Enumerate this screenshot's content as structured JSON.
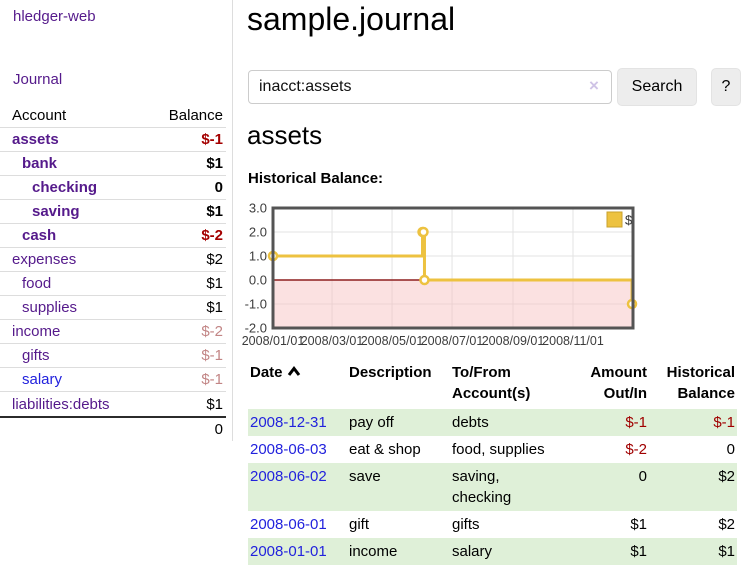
{
  "app": {
    "brand": "hledger-web",
    "nav_journal": "Journal"
  },
  "colors": {
    "link_purple": "#551a8b",
    "link_blue": "#2222dd",
    "negative_strong": "#a40000",
    "negative_soft": "#c28585",
    "row_highlight_green": "#dff0d8",
    "chart_series_yellow": "#edc240",
    "chart_negative_fill": "#f6bcbc",
    "chart_zero_line": "#8e1f1f",
    "chart_border": "#545454"
  },
  "sidebar": {
    "header": {
      "account": "Account",
      "balance": "Balance"
    },
    "accounts": [
      {
        "name": "assets",
        "balance": "$-1",
        "level": 1,
        "emphasis": true,
        "balance_tone": "neg-strong",
        "link_tone": "purple"
      },
      {
        "name": "bank",
        "balance": "$1",
        "level": 2,
        "emphasis": true,
        "balance_tone": "normal",
        "link_tone": "purple"
      },
      {
        "name": "checking",
        "balance": "0",
        "level": 3,
        "emphasis": true,
        "balance_tone": "normal",
        "link_tone": "purple"
      },
      {
        "name": "saving",
        "balance": "$1",
        "level": 3,
        "emphasis": true,
        "balance_tone": "normal",
        "link_tone": "purple"
      },
      {
        "name": "cash",
        "balance": "$-2",
        "level": 2,
        "emphasis": true,
        "balance_tone": "neg-strong",
        "link_tone": "purple"
      },
      {
        "name": "expenses",
        "balance": "$2",
        "level": 1,
        "emphasis": false,
        "balance_tone": "normal",
        "link_tone": "purple"
      },
      {
        "name": "food",
        "balance": "$1",
        "level": 2,
        "emphasis": false,
        "balance_tone": "normal",
        "link_tone": "purple"
      },
      {
        "name": "supplies",
        "balance": "$1",
        "level": 2,
        "emphasis": false,
        "balance_tone": "normal",
        "link_tone": "purple"
      },
      {
        "name": "income",
        "balance": "$-2",
        "level": 1,
        "emphasis": false,
        "balance_tone": "neg-soft",
        "link_tone": "purple"
      },
      {
        "name": "gifts",
        "balance": "$-1",
        "level": 2,
        "emphasis": false,
        "balance_tone": "neg-soft",
        "link_tone": "purple"
      },
      {
        "name": "salary",
        "balance": "$-1",
        "level": 2,
        "emphasis": false,
        "balance_tone": "neg-soft",
        "link_tone": "blue"
      },
      {
        "name": "liabilities:debts",
        "balance": "$1",
        "level": 1,
        "emphasis": false,
        "balance_tone": "normal",
        "link_tone": "purple"
      }
    ],
    "total": "0"
  },
  "main": {
    "title": "sample.journal",
    "search": {
      "value": "inacct:assets",
      "clear_icon": "×",
      "button_label": "Search",
      "help_label": "?"
    },
    "account_heading": "assets",
    "chart_title": "Historical Balance:"
  },
  "chart_data": {
    "type": "line",
    "step": true,
    "title": "Historical Balance:",
    "series": [
      {
        "name": "$",
        "points": [
          [
            "2008/01/01",
            1
          ],
          [
            "2008/06/01",
            2
          ],
          [
            "2008/06/02",
            2
          ],
          [
            "2008/06/03",
            0
          ],
          [
            "2008/12/31",
            -1
          ]
        ]
      }
    ],
    "x_range": [
      "2008/01/01",
      "2009/01/01"
    ],
    "y_range": [
      -2,
      3
    ],
    "y_ticks": [
      3.0,
      2.0,
      1.0,
      0.0,
      -1.0,
      -2.0
    ],
    "x_tick_labels": [
      "2008/01/01",
      "2008/03/01",
      "2008/05/01",
      "2008/07/01",
      "2008/09/01",
      "2008/11/01"
    ],
    "grid": true,
    "legend_position": "top-right",
    "negative_region_shaded": true
  },
  "register": {
    "headers": [
      {
        "label": "Date",
        "align": "left",
        "sorted": "asc"
      },
      {
        "label": "Description",
        "align": "left"
      },
      {
        "label": "To/From\nAccount(s)",
        "align": "left"
      },
      {
        "label": "Amount\nOut/In",
        "align": "right"
      },
      {
        "label": "Historical\nBalance",
        "align": "right"
      }
    ],
    "rows": [
      {
        "date": "2008-12-31",
        "description": "pay off",
        "accounts": "debts",
        "amount": "$-1",
        "balance": "$-1",
        "highlight": true
      },
      {
        "date": "2008-06-03",
        "description": "eat & shop",
        "accounts": "food, supplies",
        "amount": "$-2",
        "balance": "0",
        "highlight": false
      },
      {
        "date": "2008-06-02",
        "description": "save",
        "accounts": "saving,\nchecking",
        "amount": "0",
        "balance": "$2",
        "highlight": true
      },
      {
        "date": "2008-06-01",
        "description": "gift",
        "accounts": "gifts",
        "amount": "$1",
        "balance": "$2",
        "highlight": false
      },
      {
        "date": "2008-01-01",
        "description": "income",
        "accounts": "salary",
        "amount": "$1",
        "balance": "$1",
        "highlight": true
      }
    ]
  }
}
